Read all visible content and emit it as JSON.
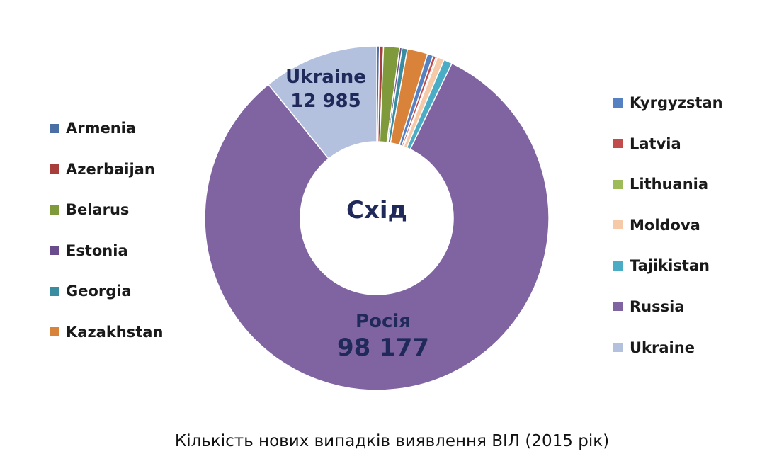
{
  "chart_data": {
    "type": "pie",
    "center_label": "Схід",
    "title": "Кількість нових випадків виявлення ВІЛ (2015 рік)",
    "categories": [
      "Armenia",
      "Azerbaijan",
      "Belarus",
      "Estonia",
      "Georgia",
      "Kazakhstan",
      "Kyrgyzstan",
      "Latvia",
      "Lithuania",
      "Moldova",
      "Tajikistan",
      "Russia",
      "Ukraine"
    ],
    "values": [
      300,
      450,
      1800,
      270,
      600,
      2300,
      650,
      350,
      150,
      800,
      950,
      98177,
      12985
    ],
    "colors": [
      "#4a6fa5",
      "#a83e3c",
      "#7f9a3a",
      "#6a4c8c",
      "#3a8da0",
      "#d9823a",
      "#5580c2",
      "#c24c4c",
      "#9dbb59",
      "#f6c9a8",
      "#4bacc6",
      "#8064a2",
      "#b4c1de"
    ],
    "segment_labels": [
      {
        "category": "Ukraine",
        "name": "Ukraine",
        "value": "12 985"
      },
      {
        "category": "Russia",
        "name": "Росія",
        "value": "98 177"
      }
    ],
    "legend_left": [
      "Armenia",
      "Azerbaijan",
      "Belarus",
      "Estonia",
      "Georgia",
      "Kazakhstan"
    ],
    "legend_right": [
      "Kyrgyzstan",
      "Latvia",
      "Lithuania",
      "Moldova",
      "Tajikistan",
      "Russia",
      "Ukraine"
    ]
  }
}
